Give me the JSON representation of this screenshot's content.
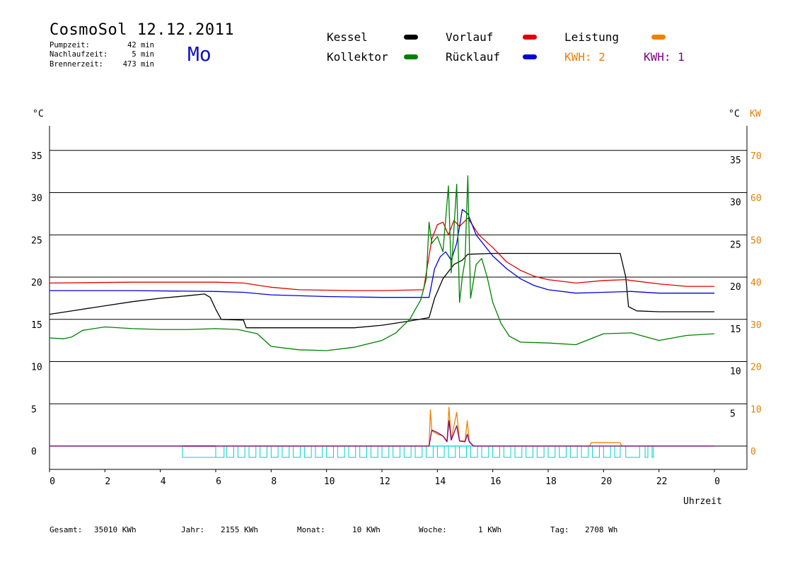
{
  "header": {
    "title": "CosmoSol 12.12.2011",
    "weekday": "Mo",
    "stats": [
      {
        "label": "Pumpzeit:",
        "value": "42 min"
      },
      {
        "label": "Nachlaufzeit:",
        "value": "5 min"
      },
      {
        "label": "Brennerzeit:",
        "value": "473 min"
      }
    ]
  },
  "legend": {
    "kessel": {
      "label": "Kessel",
      "color": "#000000"
    },
    "kollektor": {
      "label": "Kollektor",
      "color": "#008000"
    },
    "vorlauf": {
      "label": "Vorlauf",
      "color": "#e00000"
    },
    "ruecklauf": {
      "label": "Rücklauf",
      "color": "#0000e0"
    },
    "leistung": {
      "label": "Leistung",
      "color": "#f08000"
    },
    "kwh2": {
      "label": "KWH: 2",
      "color": "#f08000"
    },
    "kwh1": {
      "label": "KWH: 1",
      "color": "#800080"
    }
  },
  "footer": [
    {
      "label": "Gesamt:",
      "value": "35010 KWh"
    },
    {
      "label": "Jahr:",
      "value": "2155 KWh"
    },
    {
      "label": "Monat:",
      "value": "10 KWh"
    },
    {
      "label": "Woche:",
      "value": "1 KWh"
    },
    {
      "label": "Tag:",
      "value": "2708 Wh"
    }
  ],
  "chart_data": {
    "type": "line",
    "ylabel": "°C",
    "y2label": "°C",
    "y3label": "KW",
    "xlabel": "Uhrzeit",
    "xlim": [
      0,
      24
    ],
    "ylim": [
      -3,
      38
    ],
    "xticks": [
      "0",
      "2",
      "4",
      "6",
      "8",
      "10",
      "12",
      "14",
      "16",
      "18",
      "20",
      "22",
      "0"
    ],
    "yticks_left": [
      0,
      5,
      10,
      15,
      20,
      25,
      30,
      35
    ],
    "yticks_right": [
      5,
      10,
      15,
      20,
      25,
      30,
      35
    ],
    "yticks_kw": [
      0,
      10,
      20,
      30,
      40,
      50,
      60,
      70
    ],
    "grid": "horizontal",
    "series": [
      {
        "name": "Kessel",
        "color": "#000000",
        "points": [
          [
            0,
            15.6
          ],
          [
            1,
            16.1
          ],
          [
            2,
            16.6
          ],
          [
            3,
            17.1
          ],
          [
            4,
            17.5
          ],
          [
            5,
            17.8
          ],
          [
            5.6,
            18.0
          ],
          [
            5.8,
            17.6
          ],
          [
            6.0,
            16.2
          ],
          [
            6.2,
            15.0
          ],
          [
            7.0,
            14.9
          ],
          [
            7.1,
            14.0
          ],
          [
            9,
            14.0
          ],
          [
            11,
            14.0
          ],
          [
            12,
            14.3
          ],
          [
            13,
            14.8
          ],
          [
            13.7,
            15.2
          ],
          [
            13.9,
            17.5
          ],
          [
            14.2,
            19.8
          ],
          [
            14.6,
            21.5
          ],
          [
            14.9,
            22.0
          ],
          [
            15.1,
            22.7
          ],
          [
            16,
            22.8
          ],
          [
            18,
            22.8
          ],
          [
            20,
            22.8
          ],
          [
            20.6,
            22.8
          ],
          [
            20.8,
            20
          ],
          [
            20.9,
            16.5
          ],
          [
            21.2,
            16.0
          ],
          [
            22,
            15.9
          ],
          [
            24,
            15.9
          ]
        ]
      },
      {
        "name": "Vorlauf",
        "color": "#e00000",
        "points": [
          [
            0,
            19.3
          ],
          [
            3,
            19.4
          ],
          [
            6,
            19.4
          ],
          [
            7,
            19.3
          ],
          [
            8,
            18.8
          ],
          [
            9,
            18.5
          ],
          [
            11,
            18.4
          ],
          [
            12,
            18.4
          ],
          [
            13.5,
            18.5
          ],
          [
            13.8,
            24.5
          ],
          [
            14.0,
            26.2
          ],
          [
            14.2,
            26.5
          ],
          [
            14.4,
            25.0
          ],
          [
            14.6,
            26.7
          ],
          [
            14.8,
            26.0
          ],
          [
            15.1,
            27.0
          ],
          [
            15.5,
            25.0
          ],
          [
            16,
            23.5
          ],
          [
            16.5,
            21.8
          ],
          [
            17,
            20.8
          ],
          [
            17.5,
            20.1
          ],
          [
            18,
            19.7
          ],
          [
            19,
            19.3
          ],
          [
            20,
            19.6
          ],
          [
            20.8,
            19.7
          ],
          [
            21,
            19.6
          ],
          [
            22,
            19.2
          ],
          [
            23,
            18.9
          ],
          [
            24,
            18.9
          ]
        ]
      },
      {
        "name": "Rücklauf",
        "color": "#0000e0",
        "points": [
          [
            0,
            18.4
          ],
          [
            3,
            18.4
          ],
          [
            6,
            18.3
          ],
          [
            7,
            18.2
          ],
          [
            8,
            17.9
          ],
          [
            10,
            17.7
          ],
          [
            12,
            17.6
          ],
          [
            13.7,
            17.6
          ],
          [
            13.9,
            21.0
          ],
          [
            14.1,
            22.4
          ],
          [
            14.3,
            23.0
          ],
          [
            14.5,
            22.0
          ],
          [
            14.7,
            24.0
          ],
          [
            14.9,
            28.0
          ],
          [
            15.1,
            27.5
          ],
          [
            15.4,
            25.0
          ],
          [
            16,
            22.5
          ],
          [
            16.5,
            21.0
          ],
          [
            17,
            19.8
          ],
          [
            17.5,
            19.0
          ],
          [
            18,
            18.5
          ],
          [
            19,
            18.1
          ],
          [
            20,
            18.2
          ],
          [
            21,
            18.3
          ],
          [
            22,
            18.1
          ],
          [
            24,
            18.1
          ]
        ]
      },
      {
        "name": "Kollektor",
        "color": "#008000",
        "points": [
          [
            0,
            12.8
          ],
          [
            0.5,
            12.7
          ],
          [
            0.8,
            12.9
          ],
          [
            1.2,
            13.7
          ],
          [
            2,
            14.1
          ],
          [
            3,
            13.9
          ],
          [
            4,
            13.8
          ],
          [
            5,
            13.8
          ],
          [
            6,
            13.9
          ],
          [
            6.8,
            13.8
          ],
          [
            7.5,
            13.3
          ],
          [
            8,
            11.8
          ],
          [
            9,
            11.4
          ],
          [
            10,
            11.3
          ],
          [
            11,
            11.7
          ],
          [
            12,
            12.5
          ],
          [
            12.5,
            13.4
          ],
          [
            13,
            15.0
          ],
          [
            13.4,
            17.3
          ],
          [
            13.6,
            19.8
          ],
          [
            13.7,
            26.5
          ],
          [
            13.8,
            24.0
          ],
          [
            14.0,
            24.8
          ],
          [
            14.2,
            23.0
          ],
          [
            14.4,
            30.8
          ],
          [
            14.5,
            20.5
          ],
          [
            14.7,
            31.0
          ],
          [
            14.8,
            17.0
          ],
          [
            14.9,
            20.0
          ],
          [
            15.0,
            22.0
          ],
          [
            15.1,
            32.0
          ],
          [
            15.2,
            17.5
          ],
          [
            15.4,
            21.5
          ],
          [
            15.6,
            22.2
          ],
          [
            15.8,
            20.0
          ],
          [
            16,
            17.0
          ],
          [
            16.3,
            14.5
          ],
          [
            16.6,
            13.0
          ],
          [
            17,
            12.3
          ],
          [
            18,
            12.2
          ],
          [
            19,
            12.0
          ],
          [
            20,
            13.3
          ],
          [
            21,
            13.4
          ],
          [
            22,
            12.5
          ],
          [
            23,
            13.1
          ],
          [
            24,
            13.3
          ]
        ]
      },
      {
        "name": "Leistung",
        "color": "#f08000",
        "points": [
          [
            0,
            0
          ],
          [
            13.7,
            0
          ],
          [
            13.75,
            4.3
          ],
          [
            13.8,
            1.8
          ],
          [
            14.0,
            1.4
          ],
          [
            14.2,
            1.2
          ],
          [
            14.35,
            0.6
          ],
          [
            14.42,
            4.6
          ],
          [
            14.5,
            0.8
          ],
          [
            14.7,
            4.0
          ],
          [
            14.8,
            0.6
          ],
          [
            15.0,
            0.6
          ],
          [
            15.08,
            3.0
          ],
          [
            15.15,
            0.6
          ],
          [
            15.3,
            0
          ],
          [
            19.5,
            0
          ],
          [
            19.55,
            0.4
          ],
          [
            20.6,
            0.4
          ],
          [
            20.65,
            0
          ],
          [
            24,
            0
          ]
        ]
      },
      {
        "name": "KWH: 1",
        "color": "#800080",
        "points": [
          [
            0,
            0
          ],
          [
            13.7,
            0
          ],
          [
            13.8,
            1.9
          ],
          [
            14.0,
            1.6
          ],
          [
            14.2,
            1.2
          ],
          [
            14.35,
            0.5
          ],
          [
            14.42,
            3.0
          ],
          [
            14.5,
            0.7
          ],
          [
            14.7,
            2.4
          ],
          [
            14.8,
            0.6
          ],
          [
            15.0,
            0.5
          ],
          [
            15.08,
            1.4
          ],
          [
            15.15,
            0.5
          ],
          [
            15.3,
            0
          ],
          [
            24,
            0
          ]
        ]
      }
    ],
    "pump_pulses": [
      [
        4.8,
        6.0
      ],
      [
        6.0,
        6.3
      ],
      [
        6.4,
        6.65
      ],
      [
        6.8,
        7.05
      ],
      [
        7.2,
        7.45
      ],
      [
        7.6,
        7.85
      ],
      [
        8.0,
        8.25
      ],
      [
        8.4,
        8.65
      ],
      [
        8.8,
        9.05
      ],
      [
        9.2,
        9.45
      ],
      [
        9.6,
        9.85
      ],
      [
        10.0,
        10.25
      ],
      [
        10.4,
        10.65
      ],
      [
        10.8,
        11.05
      ],
      [
        11.2,
        11.45
      ],
      [
        11.6,
        11.85
      ],
      [
        12.0,
        12.25
      ],
      [
        12.4,
        12.65
      ],
      [
        12.8,
        13.05
      ],
      [
        13.2,
        13.45
      ],
      [
        13.6,
        13.85
      ],
      [
        14.0,
        14.25
      ],
      [
        14.4,
        14.65
      ],
      [
        14.8,
        15.05
      ],
      [
        15.2,
        15.45
      ],
      [
        15.6,
        15.85
      ],
      [
        16.0,
        16.25
      ],
      [
        16.4,
        16.65
      ],
      [
        16.8,
        17.05
      ],
      [
        17.2,
        17.45
      ],
      [
        17.6,
        17.85
      ],
      [
        18.0,
        18.25
      ],
      [
        18.4,
        18.65
      ],
      [
        18.8,
        19.05
      ],
      [
        19.2,
        19.45
      ],
      [
        19.6,
        19.85
      ],
      [
        20.0,
        20.25
      ],
      [
        20.4,
        20.6
      ],
      [
        20.8,
        21.3
      ],
      [
        21.5,
        21.6
      ],
      [
        21.75,
        21.8
      ]
    ],
    "pulse_color": "#00d0d0"
  }
}
